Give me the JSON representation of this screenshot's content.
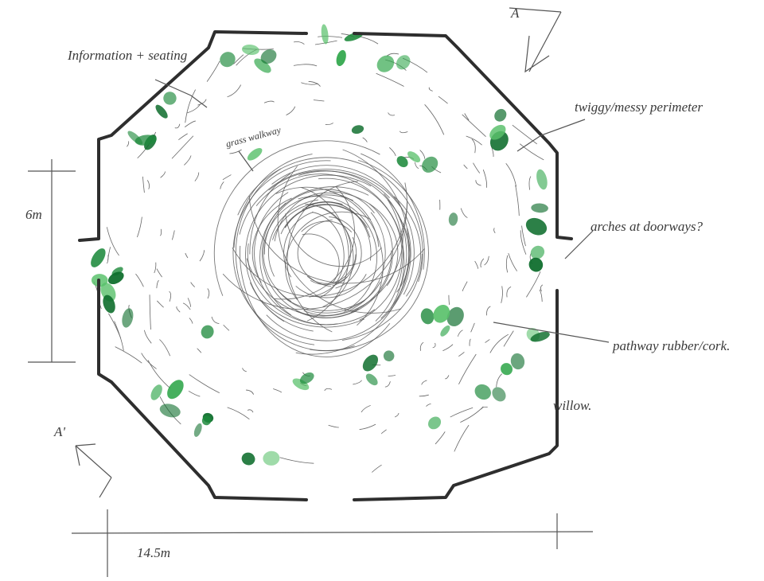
{
  "annotations": {
    "information": "Information + seating",
    "walkway": "grass walkway",
    "perimeter": "twiggy/messy perimeter",
    "arches": "arches at doorways?",
    "pathway": "pathway rubber/cork.",
    "willow": "willow."
  },
  "dimensions": {
    "height": "6m",
    "width": "14.5m"
  },
  "section_markers": [
    "A",
    "A'"
  ]
}
